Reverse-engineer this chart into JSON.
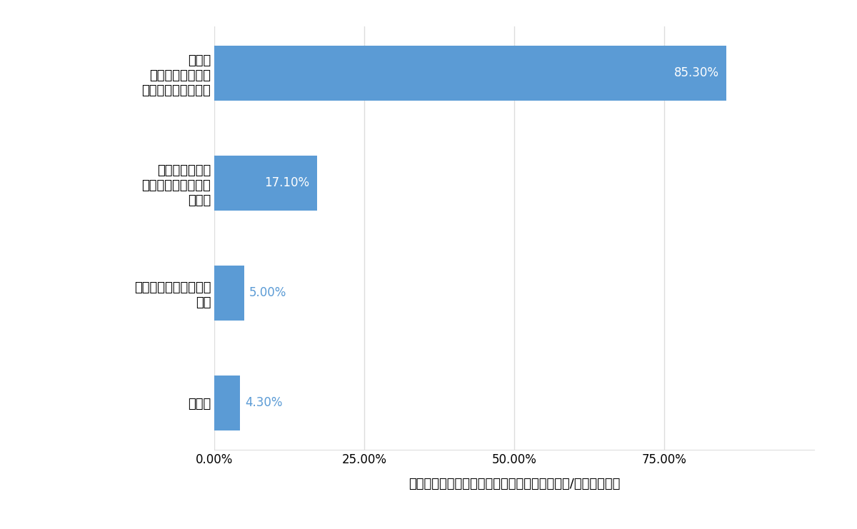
{
  "categories": [
    "その他",
    "ウォーターサーバーの\nお水",
    "水道水のお水を\n空きペットボトルに\n入れて",
    "市販の\nペットボトル入り\nミネラルウォーター"
  ],
  "values": [
    4.3,
    5.0,
    17.1,
    85.3
  ],
  "labels": [
    "4.30%",
    "5.00%",
    "17.10%",
    "85.30%"
  ],
  "bar_color": "#5B9BD5",
  "label_color_inside": "#FFFFFF",
  "label_color_outside": "#5B9BD5",
  "xlabel": "どのような方法で備蓄水を用意していますか？/いましたか？",
  "xlim": [
    0,
    100
  ],
  "xticklabels": [
    "0.00%",
    "25.00%",
    "50.00%",
    "75.00%"
  ],
  "background_color": "#FFFFFF",
  "grid_color": "#DDDDDD",
  "tick_fontsize": 12,
  "label_fontsize": 12,
  "xlabel_fontsize": 13,
  "ylabel_fontsize": 13
}
